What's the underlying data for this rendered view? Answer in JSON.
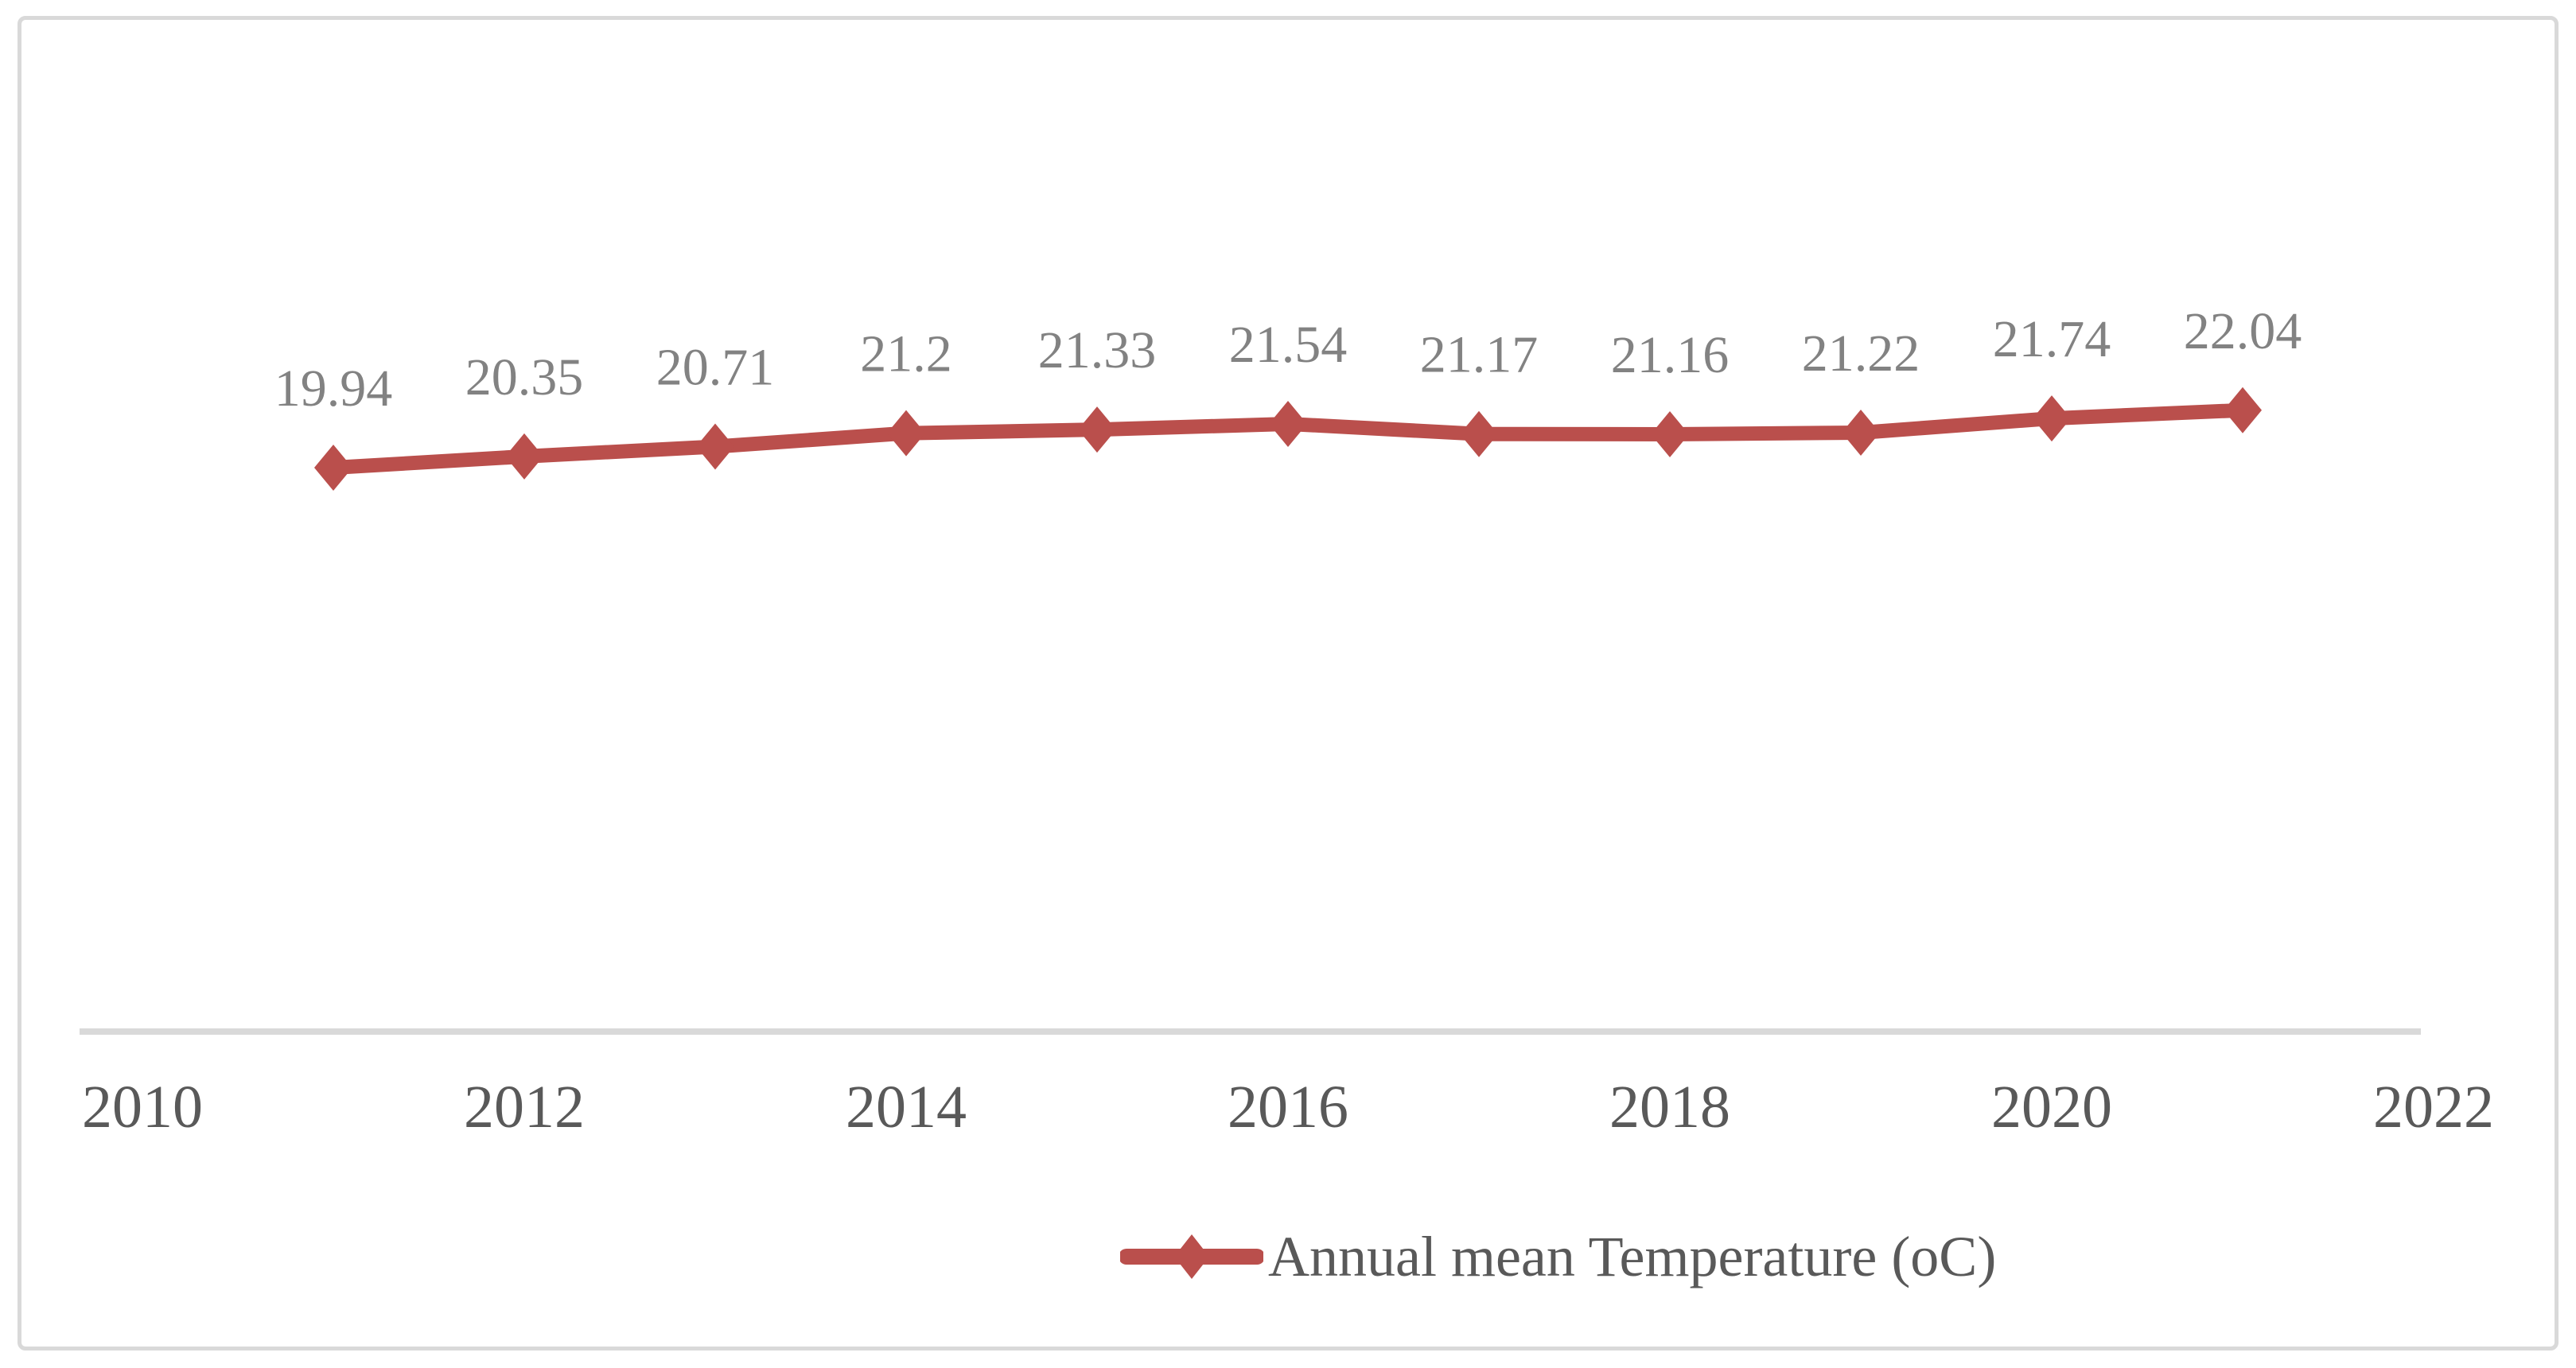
{
  "window": {
    "background": "#ffffff",
    "frame_border_color": "#d9d9d9"
  },
  "chart_data": {
    "type": "line",
    "title": "",
    "xlabel": "",
    "ylabel": "",
    "x": [
      2011,
      2012,
      2013,
      2014,
      2015,
      2016,
      2017,
      2018,
      2019,
      2020,
      2021
    ],
    "series": [
      {
        "name": "Annual mean Temperature (oC)",
        "values": [
          19.94,
          20.35,
          20.71,
          21.2,
          21.33,
          21.54,
          21.17,
          21.16,
          21.22,
          21.74,
          22.04
        ],
        "point_labels": [
          "19.94",
          "20.35",
          "20.71",
          "21.2",
          "21.33",
          "21.54",
          "21.17",
          "21.16",
          "21.22",
          "21.74",
          "22.04"
        ],
        "color": "#ba4f4c",
        "marker": "diamond"
      }
    ],
    "xlim": [
      2010,
      2022
    ],
    "x_tick_years": [
      2010,
      2012,
      2014,
      2016,
      2018,
      2020,
      2022
    ],
    "x_tick_labels": [
      "2010",
      "2012",
      "2014",
      "2016",
      "2018",
      "2020",
      "2022"
    ],
    "grid": false,
    "y_axis_visible": false,
    "axis_line_color": "#d9d9d9",
    "x_tick_color": "#595959",
    "data_label_color": "#828282",
    "legend": {
      "position": "bottom-center",
      "label": "Annual mean Temperature (oC)",
      "text_color": "#595959"
    }
  }
}
